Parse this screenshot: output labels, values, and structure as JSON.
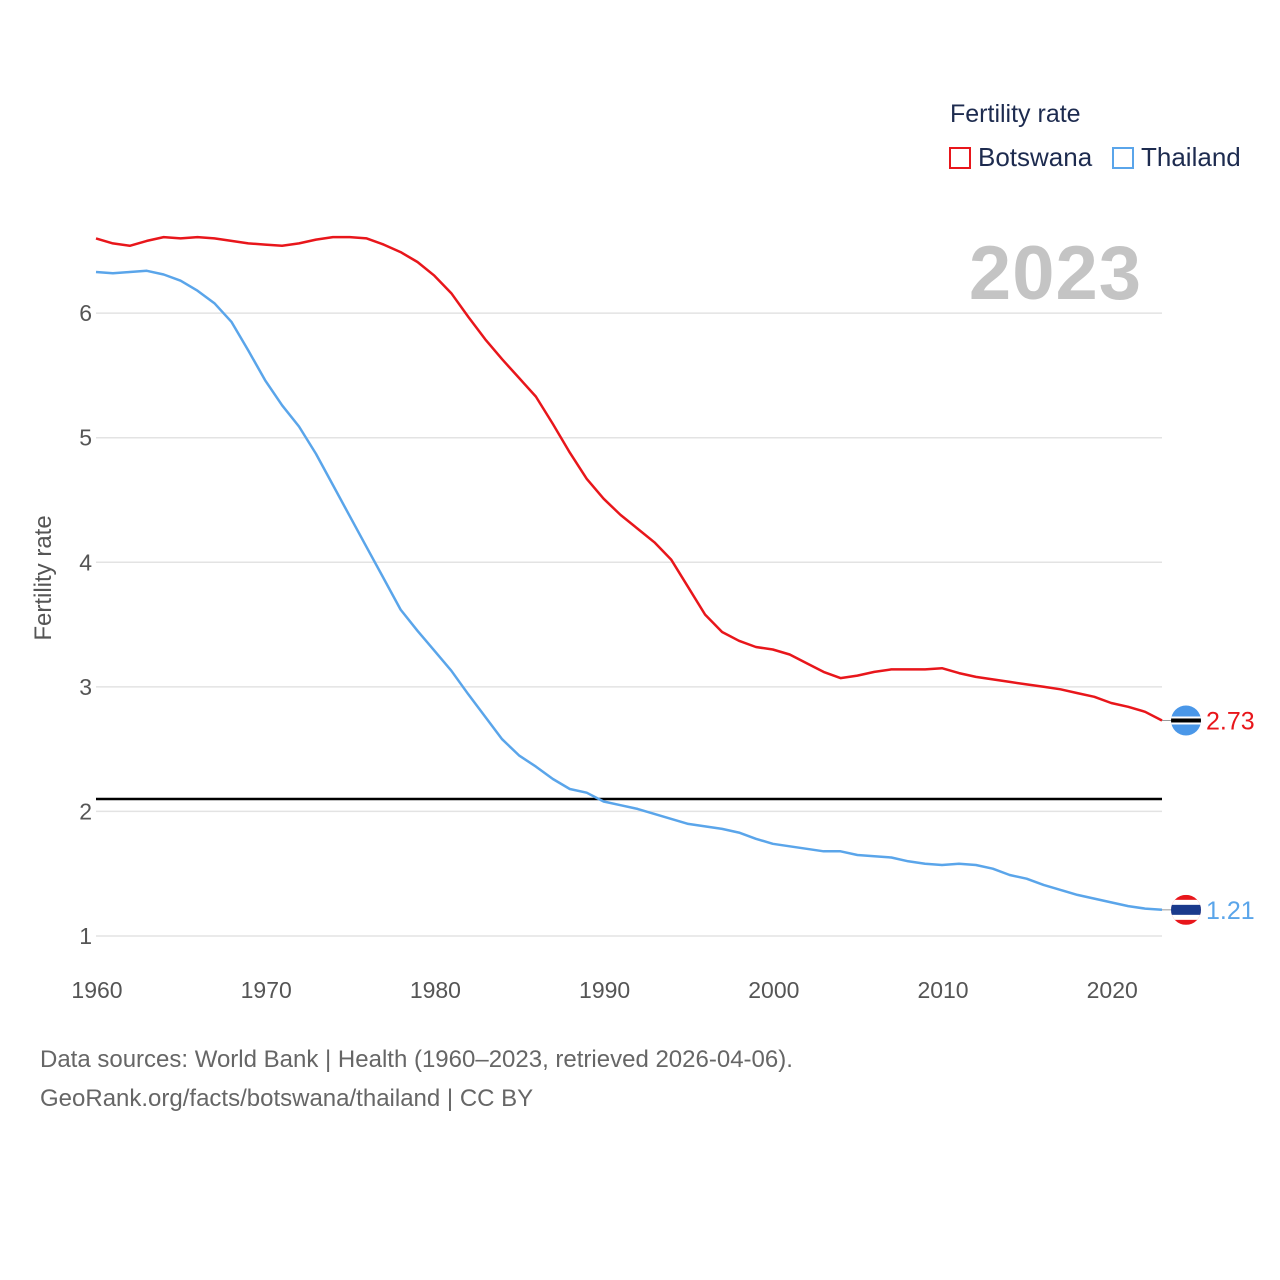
{
  "legend": {
    "title": "Fertility rate",
    "items": [
      {
        "label": "Botswana",
        "color": "#e8161b"
      },
      {
        "label": "Thailand",
        "color": "#5aa5ea"
      }
    ]
  },
  "year_label": "2023",
  "footer": {
    "line1": "Data sources: World Bank | Health (1960–2023, retrieved 2026-04-06).",
    "line2": "GeoRank.org/facts/botswana/thailand | CC BY"
  },
  "chart_data": {
    "type": "line",
    "title": "Fertility rate",
    "xlabel": "",
    "ylabel": "Fertility rate",
    "xlim": [
      1960,
      2023
    ],
    "ylim": [
      0.9,
      6.9
    ],
    "xticks": [
      1960,
      1970,
      1980,
      1990,
      2000,
      2010,
      2020
    ],
    "yticks": [
      1,
      2,
      3,
      4,
      5,
      6
    ],
    "reference_line": 2.1,
    "x": [
      1960,
      1961,
      1962,
      1963,
      1964,
      1965,
      1966,
      1967,
      1968,
      1969,
      1970,
      1971,
      1972,
      1973,
      1974,
      1975,
      1976,
      1977,
      1978,
      1979,
      1980,
      1981,
      1982,
      1983,
      1984,
      1985,
      1986,
      1987,
      1988,
      1989,
      1990,
      1991,
      1992,
      1993,
      1994,
      1995,
      1996,
      1997,
      1998,
      1999,
      2000,
      2001,
      2002,
      2003,
      2004,
      2005,
      2006,
      2007,
      2008,
      2009,
      2010,
      2011,
      2012,
      2013,
      2014,
      2015,
      2016,
      2017,
      2018,
      2019,
      2020,
      2021,
      2022,
      2023
    ],
    "series": [
      {
        "name": "Botswana",
        "color": "#e8161b",
        "end_label": "2.73",
        "values": [
          6.6,
          6.56,
          6.54,
          6.58,
          6.61,
          6.6,
          6.61,
          6.6,
          6.58,
          6.56,
          6.55,
          6.54,
          6.56,
          6.59,
          6.61,
          6.61,
          6.6,
          6.55,
          6.49,
          6.41,
          6.3,
          6.16,
          5.97,
          5.79,
          5.63,
          5.48,
          5.33,
          5.11,
          4.88,
          4.67,
          4.51,
          4.38,
          4.27,
          4.16,
          4.02,
          3.8,
          3.58,
          3.44,
          3.37,
          3.32,
          3.3,
          3.26,
          3.19,
          3.12,
          3.07,
          3.09,
          3.12,
          3.14,
          3.14,
          3.14,
          3.15,
          3.11,
          3.08,
          3.06,
          3.04,
          3.02,
          3.0,
          2.98,
          2.95,
          2.92,
          2.87,
          2.84,
          2.8,
          2.73
        ]
      },
      {
        "name": "Thailand",
        "color": "#5aa5ea",
        "end_label": "1.21",
        "values": [
          6.33,
          6.32,
          6.33,
          6.34,
          6.31,
          6.26,
          6.18,
          6.08,
          5.93,
          5.7,
          5.46,
          5.26,
          5.09,
          4.87,
          4.62,
          4.37,
          4.12,
          3.87,
          3.62,
          3.45,
          3.29,
          3.13,
          2.94,
          2.76,
          2.58,
          2.45,
          2.36,
          2.26,
          2.18,
          2.15,
          2.08,
          2.05,
          2.02,
          1.98,
          1.94,
          1.9,
          1.88,
          1.86,
          1.83,
          1.78,
          1.74,
          1.72,
          1.7,
          1.68,
          1.68,
          1.65,
          1.64,
          1.63,
          1.6,
          1.58,
          1.57,
          1.58,
          1.57,
          1.54,
          1.49,
          1.46,
          1.41,
          1.37,
          1.33,
          1.3,
          1.27,
          1.24,
          1.22,
          1.21
        ]
      }
    ]
  }
}
